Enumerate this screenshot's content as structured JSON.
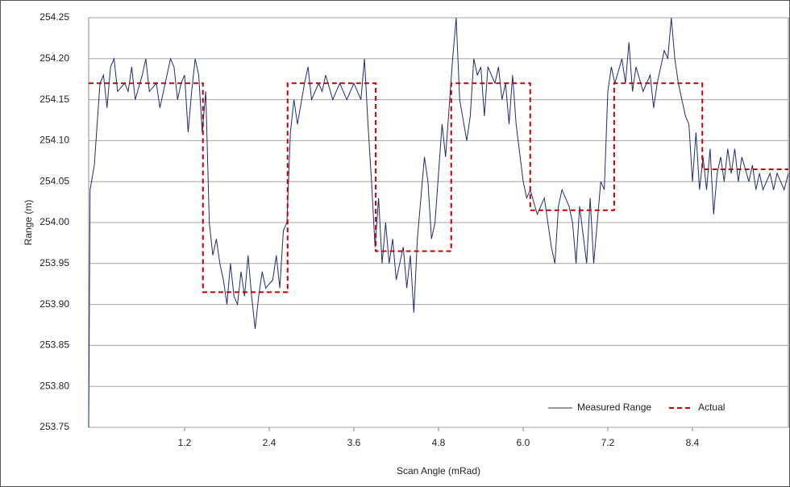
{
  "chart_data": {
    "type": "line",
    "y_label": "Range (m)",
    "x_label": "Scan Angle (mRad)",
    "xlim": [
      -0.16,
      9.76
    ],
    "ylim": [
      253.75,
      254.25
    ],
    "xticks": [
      1.2,
      2.4,
      3.6,
      4.8,
      {
        "value": 6,
        "label": "6.0"
      },
      7.2,
      8.4
    ],
    "yticks": [
      253.75,
      {
        "value": 253.8,
        "label": "253.80"
      },
      253.85,
      {
        "value": 253.9,
        "label": "253.90"
      },
      253.95,
      {
        "value": 254,
        "label": "254.00"
      },
      254.05,
      {
        "value": 254.1,
        "label": "254.10"
      },
      254.15,
      {
        "value": 254.2,
        "label": "254.20"
      },
      254.25
    ],
    "grid": true,
    "legend": "lower right",
    "series": [
      {
        "name": "Measured Range",
        "color": "#1f2a7a",
        "dashed": false,
        "x": [
          -0.16,
          -0.14,
          -0.08,
          0.0,
          0.05,
          0.1,
          0.15,
          0.2,
          0.25,
          0.35,
          0.4,
          0.45,
          0.5,
          0.6,
          0.65,
          0.7,
          0.8,
          0.85,
          0.95,
          1.0,
          1.05,
          1.1,
          1.15,
          1.2,
          1.25,
          1.3,
          1.35,
          1.4,
          1.45,
          1.5,
          1.55,
          1.6,
          1.65,
          1.7,
          1.75,
          1.8,
          1.85,
          1.9,
          1.95,
          2.0,
          2.05,
          2.1,
          2.15,
          2.2,
          2.25,
          2.3,
          2.35,
          2.45,
          2.5,
          2.55,
          2.6,
          2.65,
          2.7,
          2.75,
          2.8,
          2.9,
          2.95,
          3.0,
          3.1,
          3.15,
          3.2,
          3.3,
          3.4,
          3.5,
          3.6,
          3.7,
          3.75,
          3.8,
          3.85,
          3.9,
          3.95,
          4.0,
          4.05,
          4.1,
          4.15,
          4.2,
          4.3,
          4.35,
          4.4,
          4.45,
          4.5,
          4.55,
          4.6,
          4.65,
          4.7,
          4.75,
          4.8,
          4.85,
          4.9,
          5.0,
          5.05,
          5.1,
          5.2,
          5.25,
          5.3,
          5.35,
          5.4,
          5.45,
          5.5,
          5.6,
          5.65,
          5.7,
          5.75,
          5.8,
          5.85,
          5.9,
          6.0,
          6.05,
          6.1,
          6.2,
          6.3,
          6.4,
          6.45,
          6.5,
          6.55,
          6.65,
          6.7,
          6.75,
          6.8,
          6.9,
          6.95,
          7.0,
          7.05,
          7.1,
          7.15,
          7.2,
          7.25,
          7.3,
          7.4,
          7.45,
          7.5,
          7.55,
          7.6,
          7.7,
          7.8,
          7.85,
          7.9,
          8.0,
          8.05,
          8.1,
          8.15,
          8.2,
          8.3,
          8.35,
          8.4,
          8.45,
          8.5,
          8.55,
          8.6,
          8.65,
          8.7,
          8.75,
          8.8,
          8.85,
          8.9,
          8.95,
          9.0,
          9.05,
          9.1,
          9.2,
          9.25,
          9.3,
          9.35,
          9.4,
          9.5,
          9.55,
          9.6,
          9.7,
          9.76
        ],
        "values": [
          253.75,
          254.04,
          254.07,
          254.17,
          254.18,
          254.14,
          254.19,
          254.2,
          254.16,
          254.17,
          254.16,
          254.19,
          254.15,
          254.18,
          254.2,
          254.16,
          254.17,
          254.14,
          254.18,
          254.2,
          254.19,
          254.15,
          254.17,
          254.18,
          254.11,
          254.16,
          254.2,
          254.18,
          254.11,
          254.16,
          254.0,
          253.96,
          253.98,
          253.95,
          253.93,
          253.9,
          253.95,
          253.91,
          253.9,
          253.94,
          253.91,
          253.96,
          253.91,
          253.87,
          253.91,
          253.94,
          253.92,
          253.93,
          253.96,
          253.92,
          253.99,
          254.0,
          254.11,
          254.15,
          254.12,
          254.17,
          254.19,
          254.15,
          254.17,
          254.16,
          254.18,
          254.15,
          254.17,
          254.15,
          254.17,
          254.15,
          254.2,
          254.12,
          254.05,
          253.97,
          254.03,
          253.95,
          254.0,
          253.95,
          253.98,
          253.93,
          253.97,
          253.92,
          253.96,
          253.89,
          253.98,
          254.03,
          254.08,
          254.05,
          253.98,
          254.0,
          254.06,
          254.12,
          254.08,
          254.2,
          254.25,
          254.15,
          254.1,
          254.13,
          254.2,
          254.18,
          254.19,
          254.13,
          254.19,
          254.17,
          254.19,
          254.15,
          254.17,
          254.12,
          254.18,
          254.12,
          254.05,
          254.03,
          254.04,
          254.01,
          254.03,
          253.97,
          253.95,
          254.02,
          254.04,
          254.02,
          254.0,
          253.95,
          254.02,
          253.95,
          254.03,
          253.95,
          254.0,
          254.05,
          254.04,
          254.16,
          254.19,
          254.17,
          254.2,
          254.17,
          254.22,
          254.16,
          254.19,
          254.16,
          254.18,
          254.14,
          254.17,
          254.21,
          254.2,
          254.25,
          254.2,
          254.17,
          254.13,
          254.12,
          254.05,
          254.11,
          254.04,
          254.08,
          254.04,
          254.09,
          254.01,
          254.06,
          254.08,
          254.05,
          254.09,
          254.06,
          254.09,
          254.05,
          254.08,
          254.05,
          254.07,
          254.04,
          254.06,
          254.04,
          254.06,
          254.04,
          254.06,
          254.04,
          254.06
        ]
      },
      {
        "name": "Actual",
        "color": "#c00000",
        "dashed": true,
        "x": [
          -0.16,
          1.46,
          1.46,
          2.66,
          2.66,
          3.91,
          3.91,
          4.98,
          4.98,
          6.1,
          6.1,
          7.29,
          7.29,
          8.54,
          8.54,
          9.76
        ],
        "values": [
          254.17,
          254.17,
          253.915,
          253.915,
          254.17,
          254.17,
          253.965,
          253.965,
          254.17,
          254.17,
          254.015,
          254.015,
          254.17,
          254.17,
          254.065,
          254.065
        ]
      }
    ]
  }
}
